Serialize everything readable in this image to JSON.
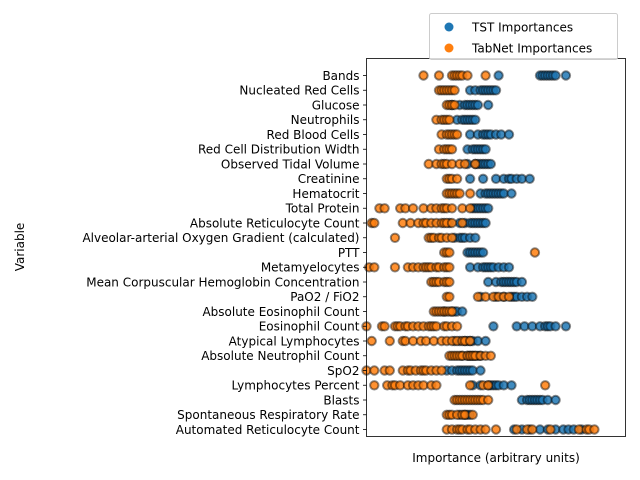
{
  "chart_data": {
    "type": "scatter",
    "title": "",
    "xlabel": "Importance (arbitrary units)",
    "ylabel": "Variable",
    "x_ticks": "hidden",
    "xlim": [
      0,
      1
    ],
    "grid": false,
    "legend_placement": "upper-right, above axes",
    "colors": {
      "TST Importances": "#1f77b4",
      "TabNet Importances": "#ff7f0e"
    },
    "categories": [
      "Bands",
      "Nucleated Red Cells",
      "Glucose",
      "Neutrophils",
      "Red Blood Cells",
      "Red Cell Distribution Width",
      "Observed Tidal Volume",
      "Creatinine",
      "Hematocrit",
      "Total Protein",
      "Absolute Reticulocyte Count",
      "Alveolar-arterial Oxygen Gradient (calculated)",
      "PTT",
      "Metamyelocytes",
      "Mean Corpuscular Hemoglobin Concentration",
      "PaO2 / FiO2",
      "Absolute Eosinophil Count",
      "Eosinophil Count",
      "Atypical Lymphocytes",
      "Absolute Neutrophil Count",
      "SpO2",
      "Lymphocytes Percent",
      "Blasts",
      "Spontaneous Respiratory Rate",
      "Automated Reticulocyte Count"
    ],
    "series": [
      {
        "name": "TST Importances",
        "values": [
          [
            0.51,
            0.67,
            0.68,
            0.69,
            0.7,
            0.71,
            0.72,
            0.73,
            0.77
          ],
          [
            0.4,
            0.42,
            0.44,
            0.45,
            0.46,
            0.47,
            0.48,
            0.49,
            0.5
          ],
          [
            0.33,
            0.36,
            0.38,
            0.39,
            0.4,
            0.41,
            0.42,
            0.43,
            0.47
          ],
          [
            0.35,
            0.37,
            0.38,
            0.39,
            0.4,
            0.41,
            0.42
          ],
          [
            0.4,
            0.43,
            0.45,
            0.46,
            0.47,
            0.48,
            0.5,
            0.52,
            0.55
          ],
          [
            0.39,
            0.41,
            0.42,
            0.43,
            0.44,
            0.45,
            0.46
          ],
          [
            0.39,
            0.42,
            0.43,
            0.44,
            0.45,
            0.46,
            0.47,
            0.48
          ],
          [
            0.4,
            0.45,
            0.5,
            0.53,
            0.55,
            0.56,
            0.58,
            0.6,
            0.63
          ],
          [
            0.44,
            0.46,
            0.47,
            0.48,
            0.49,
            0.5,
            0.51,
            0.52,
            0.53,
            0.56
          ],
          [
            0.41,
            0.42,
            0.43,
            0.44,
            0.45,
            0.46,
            0.47
          ],
          [
            0.32,
            0.36,
            0.38,
            0.4,
            0.41,
            0.42,
            0.43,
            0.44,
            0.45,
            0.46
          ],
          [
            0.34,
            0.36,
            0.37,
            0.38,
            0.4,
            0.42
          ],
          [
            0.39,
            0.4,
            0.41,
            0.42,
            0.43,
            0.44,
            0.45
          ],
          [
            0.4,
            0.43,
            0.45,
            0.46,
            0.47,
            0.48,
            0.49,
            0.51,
            0.53,
            0.55
          ],
          [
            0.47,
            0.5,
            0.52,
            0.53,
            0.54,
            0.55,
            0.56,
            0.57,
            0.58,
            0.6
          ],
          [
            0.44,
            0.5,
            0.53,
            0.56,
            0.57,
            0.58,
            0.6,
            0.62,
            0.64
          ],
          [
            0.3,
            0.33,
            0.34,
            0.35,
            0.37
          ],
          [
            0.49,
            0.58,
            0.61,
            0.64,
            0.67,
            0.69,
            0.7,
            0.71,
            0.73,
            0.77
          ],
          [
            0.34,
            0.36,
            0.38,
            0.39,
            0.4,
            0.41,
            0.43,
            0.46
          ],
          [
            0.37,
            0.39,
            0.4,
            0.41,
            0.42,
            0.43,
            0.44
          ],
          [
            0.31,
            0.33,
            0.35,
            0.36,
            0.37,
            0.38,
            0.39,
            0.4,
            0.41,
            0.44
          ],
          [
            0.41,
            0.44,
            0.47,
            0.48,
            0.49,
            0.5,
            0.51,
            0.53,
            0.56
          ],
          [
            0.6,
            0.62,
            0.63,
            0.64,
            0.65,
            0.66,
            0.67,
            0.68,
            0.7,
            0.73
          ],
          [
            0.36,
            0.38,
            0.39,
            0.4
          ],
          [
            0.57,
            0.6,
            0.63,
            0.67,
            0.7,
            0.73,
            0.76,
            0.78,
            0.8,
            0.83
          ]
        ]
      },
      {
        "name": "TabNet Importances",
        "values": [
          [
            0.22,
            0.28,
            0.33,
            0.34,
            0.35,
            0.36,
            0.37,
            0.39,
            0.46
          ],
          [
            0.28,
            0.29,
            0.3,
            0.31,
            0.32,
            0.33,
            0.34
          ],
          [
            0.31,
            0.32,
            0.33,
            0.34
          ],
          [
            0.27,
            0.29,
            0.3,
            0.31,
            0.32
          ],
          [
            0.29,
            0.31,
            0.32,
            0.33,
            0.34,
            0.35
          ],
          [
            0.28,
            0.3,
            0.31,
            0.32,
            0.33
          ],
          [
            0.24,
            0.27,
            0.29,
            0.3,
            0.31,
            0.33,
            0.36,
            0.38,
            0.42
          ],
          [
            0.31,
            0.32,
            0.33,
            0.35
          ],
          [
            0.31,
            0.32,
            0.33,
            0.34,
            0.35,
            0.36,
            0.4
          ],
          [
            0.05,
            0.07,
            0.13,
            0.15,
            0.18,
            0.22,
            0.25,
            0.27,
            0.29,
            0.3,
            0.31,
            0.33,
            0.37,
            0.4
          ],
          [
            0.02,
            0.03,
            0.14,
            0.17,
            0.2,
            0.22,
            0.23,
            0.25,
            0.27,
            0.29,
            0.3,
            0.31,
            0.33,
            0.37
          ],
          [
            0.11,
            0.24,
            0.25,
            0.26,
            0.28,
            0.29,
            0.31,
            0.33
          ],
          [
            0.3,
            0.31,
            0.32,
            0.65
          ],
          [
            0.01,
            0.03,
            0.11,
            0.16,
            0.18,
            0.2,
            0.22,
            0.23,
            0.24,
            0.25,
            0.27,
            0.28,
            0.3,
            0.31,
            0.32
          ],
          [
            0.25,
            0.26,
            0.27,
            0.28,
            0.3,
            0.31,
            0.32
          ],
          [
            0.31,
            0.32,
            0.43,
            0.46,
            0.49,
            0.51,
            0.53,
            0.55
          ],
          [
            0.26,
            0.27,
            0.28,
            0.29,
            0.3,
            0.31,
            0.32,
            0.33
          ],
          [
            0.0,
            0.06,
            0.07,
            0.11,
            0.12,
            0.13,
            0.15,
            0.16,
            0.18,
            0.2,
            0.22,
            0.24,
            0.25,
            0.26,
            0.27,
            0.3,
            0.31,
            0.33,
            0.35
          ],
          [
            0.02,
            0.09,
            0.14,
            0.15,
            0.18,
            0.21,
            0.23,
            0.26,
            0.29,
            0.31,
            0.33,
            0.35,
            0.37,
            0.38,
            0.4
          ],
          [
            0.32,
            0.33,
            0.34,
            0.35,
            0.36,
            0.37,
            0.39,
            0.4,
            0.41,
            0.42,
            0.44,
            0.46,
            0.48
          ],
          [
            0.0,
            0.03,
            0.07,
            0.09,
            0.14,
            0.16,
            0.17,
            0.19,
            0.21,
            0.22,
            0.23,
            0.25,
            0.27,
            0.29
          ],
          [
            0.03,
            0.08,
            0.1,
            0.11,
            0.13,
            0.16,
            0.18,
            0.2,
            0.22,
            0.25,
            0.27,
            0.4,
            0.45,
            0.47,
            0.69
          ],
          [
            0.34,
            0.35,
            0.36,
            0.37,
            0.38,
            0.39,
            0.4,
            0.41,
            0.42,
            0.43,
            0.44,
            0.45,
            0.47
          ],
          [
            0.31,
            0.32,
            0.33,
            0.35,
            0.37,
            0.38,
            0.41
          ],
          [
            0.31,
            0.33,
            0.35,
            0.36,
            0.37,
            0.39,
            0.4,
            0.42,
            0.44,
            0.46,
            0.5,
            0.58,
            0.62,
            0.64,
            0.71,
            0.82,
            0.85,
            0.86,
            0.88
          ]
        ]
      }
    ]
  }
}
